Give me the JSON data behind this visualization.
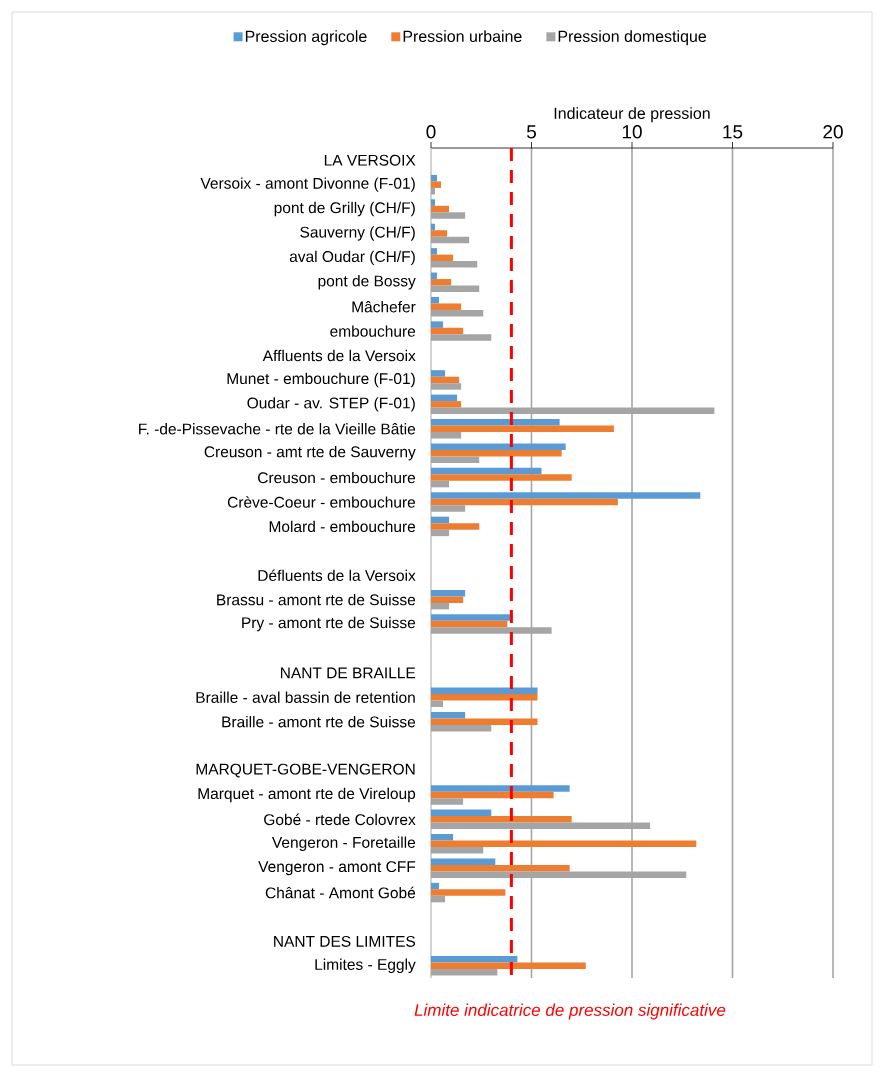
{
  "chart_data": {
    "type": "bar",
    "orientation": "horizontal",
    "xlabel": "Indicateur de pression",
    "categories": [
      "LA VERSOIX",
      "Versoix - amont Divonne (F-01)",
      "pont de Grilly (CH/F)",
      "Sauverny (CH/F)",
      "aval Oudar (CH/F)",
      "pont de Bossy",
      "Mâchefer",
      "embouchure",
      "Affluents de la Versoix",
      "Munet - embouchure (F-01)",
      "Oudar - av. STEP (F-01)",
      "F. -de-Pissevache - rte de la Vieille Bâtie",
      "Creuson - amt rte de Sauverny",
      "Creuson - embouchure",
      "Crève-Coeur - embouchure",
      "Molard - embouchure",
      null,
      "Défluents de la Versoix",
      "Brassu - amont rte de Suisse",
      "Pry - amont rte de Suisse",
      null,
      "NANT DE BRAILLE",
      "Braille - aval bassin de retention",
      "Braille - amont rte de Suisse",
      null,
      "MARQUET-GOBE-VENGERON",
      "Marquet - amont rte de Vireloup",
      "Gobé - rtede Colovrex",
      "Vengeron - Foretaille",
      "Vengeron - amont CFF",
      "Chânat - Amont Gobé",
      null,
      "NANT DES LIMITES",
      "Limites - Eggly"
    ],
    "series": [
      {
        "name": "Pression agricole",
        "color": "#5b9bd5",
        "values": [
          null,
          0.3,
          0.2,
          0.2,
          0.3,
          0.3,
          0.4,
          0.6,
          null,
          0.7,
          1.3,
          6.4,
          6.7,
          5.5,
          13.4,
          0.9,
          null,
          null,
          1.7,
          4.0,
          null,
          null,
          5.3,
          1.7,
          null,
          null,
          6.9,
          3.0,
          1.1,
          3.2,
          0.4,
          null,
          null,
          4.3
        ]
      },
      {
        "name": "Pression urbaine",
        "color": "#ed7d31",
        "values": [
          null,
          0.5,
          0.9,
          0.8,
          1.1,
          1.0,
          1.5,
          1.6,
          null,
          1.4,
          1.5,
          9.1,
          6.5,
          7.0,
          9.3,
          2.4,
          null,
          null,
          1.6,
          3.8,
          null,
          null,
          5.3,
          5.3,
          null,
          null,
          6.1,
          7.0,
          13.2,
          6.9,
          3.7,
          null,
          null,
          7.7
        ]
      },
      {
        "name": "Pression domestique",
        "color": "#a5a5a5",
        "values": [
          null,
          0.2,
          1.7,
          1.9,
          2.3,
          2.4,
          2.6,
          3.0,
          null,
          1.5,
          14.1,
          1.5,
          2.4,
          0.9,
          1.7,
          0.9,
          null,
          null,
          0.9,
          6.0,
          null,
          null,
          0.6,
          3.0,
          null,
          null,
          1.6,
          10.9,
          2.6,
          12.7,
          0.7,
          null,
          null,
          3.3
        ]
      }
    ],
    "xlim": [
      0,
      20
    ],
    "xticks": [
      0,
      5,
      10,
      15,
      20
    ],
    "grid": "x",
    "legend": "top",
    "ref_lines": [
      {
        "axis": "x",
        "value": 4,
        "label": "Limite indicatrice de pression significative",
        "color": "#ff0000",
        "line_style": "dashed"
      }
    ]
  }
}
